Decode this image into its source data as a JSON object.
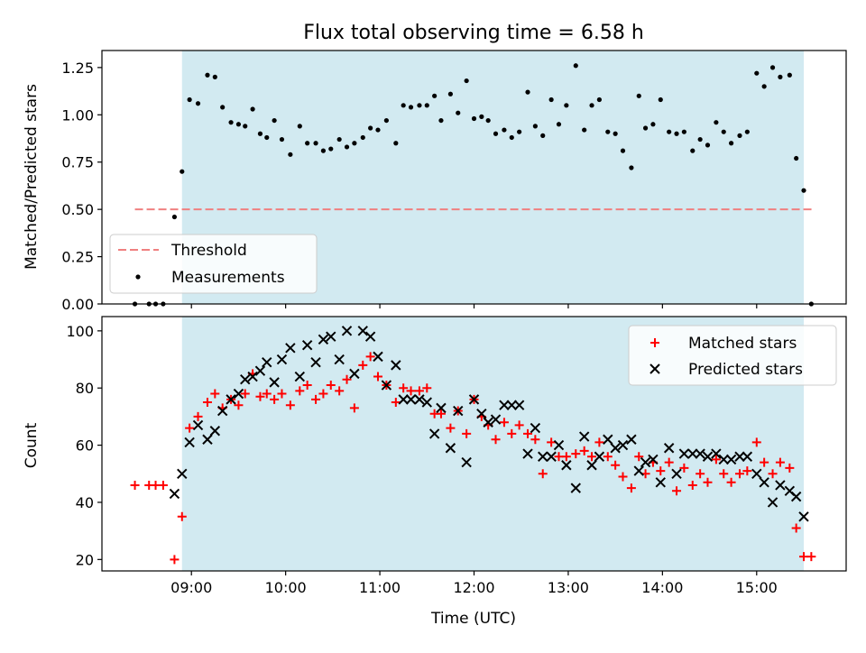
{
  "title": "Flux total observing time = 6.58 h",
  "colors": {
    "shade": "#add8e6",
    "threshold": "#f08080",
    "measurement": "#000000",
    "matched": "#ff0000",
    "predicted": "#000000"
  },
  "chart_data": [
    {
      "type": "scatter",
      "ylabel": "Matched/Predicted stars",
      "xlim": [
        8.05,
        15.95
      ],
      "ylim": [
        0,
        1.34
      ],
      "yticks": [
        0.0,
        0.25,
        0.5,
        0.75,
        1.0,
        1.25
      ],
      "ytick_labels": [
        "0.00",
        "0.25",
        "0.50",
        "0.75",
        "1.00",
        "1.25"
      ],
      "shaded_span": [
        8.9,
        15.5
      ],
      "legend_position": "lower-left",
      "threshold": {
        "name": "Threshold",
        "y": 0.5,
        "x_range": [
          8.4,
          15.6
        ],
        "style": "dashed"
      },
      "series": [
        {
          "name": "Measurements",
          "marker": "dot",
          "points": [
            [
              8.4,
              0.0
            ],
            [
              8.55,
              0.0
            ],
            [
              8.62,
              0.0
            ],
            [
              8.7,
              0.0
            ],
            [
              8.82,
              0.46
            ],
            [
              8.9,
              0.7
            ],
            [
              8.98,
              1.08
            ],
            [
              9.07,
              1.06
            ],
            [
              9.17,
              1.21
            ],
            [
              9.25,
              1.2
            ],
            [
              9.33,
              1.04
            ],
            [
              9.42,
              0.96
            ],
            [
              9.5,
              0.95
            ],
            [
              9.57,
              0.94
            ],
            [
              9.65,
              1.03
            ],
            [
              9.73,
              0.9
            ],
            [
              9.8,
              0.88
            ],
            [
              9.88,
              0.97
            ],
            [
              9.96,
              0.87
            ],
            [
              10.05,
              0.79
            ],
            [
              10.15,
              0.94
            ],
            [
              10.23,
              0.85
            ],
            [
              10.32,
              0.85
            ],
            [
              10.4,
              0.81
            ],
            [
              10.48,
              0.82
            ],
            [
              10.57,
              0.87
            ],
            [
              10.65,
              0.83
            ],
            [
              10.73,
              0.85
            ],
            [
              10.82,
              0.88
            ],
            [
              10.9,
              0.93
            ],
            [
              10.98,
              0.92
            ],
            [
              11.07,
              0.97
            ],
            [
              11.17,
              0.85
            ],
            [
              11.25,
              1.05
            ],
            [
              11.33,
              1.04
            ],
            [
              11.42,
              1.05
            ],
            [
              11.5,
              1.05
            ],
            [
              11.58,
              1.1
            ],
            [
              11.65,
              0.97
            ],
            [
              11.75,
              1.11
            ],
            [
              11.83,
              1.01
            ],
            [
              11.92,
              1.18
            ],
            [
              12.0,
              0.98
            ],
            [
              12.08,
              0.99
            ],
            [
              12.15,
              0.97
            ],
            [
              12.23,
              0.9
            ],
            [
              12.32,
              0.92
            ],
            [
              12.4,
              0.88
            ],
            [
              12.48,
              0.91
            ],
            [
              12.57,
              1.12
            ],
            [
              12.65,
              0.94
            ],
            [
              12.73,
              0.89
            ],
            [
              12.82,
              1.08
            ],
            [
              12.9,
              0.95
            ],
            [
              12.98,
              1.05
            ],
            [
              13.08,
              1.26
            ],
            [
              13.17,
              0.92
            ],
            [
              13.25,
              1.05
            ],
            [
              13.33,
              1.08
            ],
            [
              13.42,
              0.91
            ],
            [
              13.5,
              0.9
            ],
            [
              13.58,
              0.81
            ],
            [
              13.67,
              0.72
            ],
            [
              13.75,
              1.1
            ],
            [
              13.82,
              0.93
            ],
            [
              13.9,
              0.95
            ],
            [
              13.98,
              1.08
            ],
            [
              14.07,
              0.91
            ],
            [
              14.15,
              0.9
            ],
            [
              14.23,
              0.91
            ],
            [
              14.32,
              0.81
            ],
            [
              14.4,
              0.87
            ],
            [
              14.48,
              0.84
            ],
            [
              14.57,
              0.96
            ],
            [
              14.65,
              0.91
            ],
            [
              14.73,
              0.85
            ],
            [
              14.82,
              0.89
            ],
            [
              14.9,
              0.91
            ],
            [
              15.0,
              1.22
            ],
            [
              15.08,
              1.15
            ],
            [
              15.17,
              1.25
            ],
            [
              15.25,
              1.2
            ],
            [
              15.35,
              1.21
            ],
            [
              15.42,
              0.77
            ],
            [
              15.5,
              0.6
            ],
            [
              15.58,
              0.0
            ]
          ]
        }
      ]
    },
    {
      "type": "scatter",
      "xlabel": "Time (UTC)",
      "ylabel": "Count",
      "xlim": [
        8.05,
        15.95
      ],
      "ylim": [
        16,
        105
      ],
      "yticks": [
        20,
        40,
        60,
        80,
        100
      ],
      "ytick_labels": [
        "20",
        "40",
        "60",
        "80",
        "100"
      ],
      "xticks": [
        9,
        10,
        11,
        12,
        13,
        14,
        15
      ],
      "xtick_labels": [
        "09:00",
        "10:00",
        "11:00",
        "12:00",
        "13:00",
        "14:00",
        "15:00"
      ],
      "shaded_span": [
        8.9,
        15.5
      ],
      "legend_position": "upper-right",
      "series": [
        {
          "name": "Matched stars",
          "marker": "plus",
          "points": [
            [
              8.4,
              46
            ],
            [
              8.55,
              46
            ],
            [
              8.62,
              46
            ],
            [
              8.7,
              46
            ],
            [
              8.82,
              20
            ],
            [
              8.9,
              35
            ],
            [
              8.98,
              66
            ],
            [
              9.07,
              70
            ],
            [
              9.17,
              75
            ],
            [
              9.25,
              78
            ],
            [
              9.33,
              73
            ],
            [
              9.42,
              76
            ],
            [
              9.5,
              74
            ],
            [
              9.57,
              78
            ],
            [
              9.65,
              85
            ],
            [
              9.73,
              77
            ],
            [
              9.8,
              78
            ],
            [
              9.88,
              76
            ],
            [
              9.96,
              78
            ],
            [
              10.05,
              74
            ],
            [
              10.15,
              79
            ],
            [
              10.23,
              81
            ],
            [
              10.32,
              76
            ],
            [
              10.4,
              78
            ],
            [
              10.48,
              81
            ],
            [
              10.57,
              79
            ],
            [
              10.65,
              83
            ],
            [
              10.73,
              73
            ],
            [
              10.82,
              88
            ],
            [
              10.9,
              91
            ],
            [
              10.98,
              84
            ],
            [
              11.07,
              81
            ],
            [
              11.17,
              75
            ],
            [
              11.25,
              80
            ],
            [
              11.33,
              79
            ],
            [
              11.42,
              79
            ],
            [
              11.5,
              80
            ],
            [
              11.58,
              71
            ],
            [
              11.65,
              71
            ],
            [
              11.75,
              66
            ],
            [
              11.83,
              72
            ],
            [
              11.92,
              64
            ],
            [
              12.0,
              76
            ],
            [
              12.08,
              70
            ],
            [
              12.15,
              67
            ],
            [
              12.23,
              62
            ],
            [
              12.32,
              68
            ],
            [
              12.4,
              64
            ],
            [
              12.48,
              67
            ],
            [
              12.57,
              64
            ],
            [
              12.65,
              62
            ],
            [
              12.73,
              50
            ],
            [
              12.82,
              61
            ],
            [
              12.9,
              56
            ],
            [
              12.98,
              56
            ],
            [
              13.08,
              57
            ],
            [
              13.17,
              58
            ],
            [
              13.25,
              56
            ],
            [
              13.33,
              61
            ],
            [
              13.42,
              56
            ],
            [
              13.5,
              53
            ],
            [
              13.58,
              49
            ],
            [
              13.67,
              45
            ],
            [
              13.75,
              56
            ],
            [
              13.82,
              50
            ],
            [
              13.9,
              54
            ],
            [
              13.98,
              51
            ],
            [
              14.07,
              54
            ],
            [
              14.15,
              44
            ],
            [
              14.23,
              52
            ],
            [
              14.32,
              46
            ],
            [
              14.4,
              50
            ],
            [
              14.48,
              47
            ],
            [
              14.57,
              55
            ],
            [
              14.65,
              50
            ],
            [
              14.73,
              47
            ],
            [
              14.82,
              50
            ],
            [
              14.9,
              51
            ],
            [
              15.0,
              61
            ],
            [
              15.08,
              54
            ],
            [
              15.17,
              50
            ],
            [
              15.25,
              54
            ],
            [
              15.35,
              52
            ],
            [
              15.42,
              31
            ],
            [
              15.5,
              21
            ],
            [
              15.58,
              21
            ]
          ]
        },
        {
          "name": "Predicted stars",
          "marker": "x",
          "points": [
            [
              8.82,
              43
            ],
            [
              8.9,
              50
            ],
            [
              8.98,
              61
            ],
            [
              9.07,
              67
            ],
            [
              9.17,
              62
            ],
            [
              9.25,
              65
            ],
            [
              9.33,
              72
            ],
            [
              9.42,
              76
            ],
            [
              9.5,
              78
            ],
            [
              9.57,
              83
            ],
            [
              9.65,
              84
            ],
            [
              9.73,
              86
            ],
            [
              9.8,
              89
            ],
            [
              9.88,
              82
            ],
            [
              9.96,
              90
            ],
            [
              10.05,
              94
            ],
            [
              10.15,
              84
            ],
            [
              10.23,
              95
            ],
            [
              10.32,
              89
            ],
            [
              10.4,
              97
            ],
            [
              10.48,
              98
            ],
            [
              10.57,
              90
            ],
            [
              10.65,
              100
            ],
            [
              10.73,
              85
            ],
            [
              10.82,
              100
            ],
            [
              10.9,
              98
            ],
            [
              10.98,
              91
            ],
            [
              11.07,
              81
            ],
            [
              11.17,
              88
            ],
            [
              11.25,
              76
            ],
            [
              11.33,
              76
            ],
            [
              11.42,
              76
            ],
            [
              11.5,
              75
            ],
            [
              11.58,
              64
            ],
            [
              11.65,
              73
            ],
            [
              11.75,
              59
            ],
            [
              11.83,
              72
            ],
            [
              11.92,
              54
            ],
            [
              12.0,
              76
            ],
            [
              12.08,
              71
            ],
            [
              12.15,
              68
            ],
            [
              12.23,
              69
            ],
            [
              12.32,
              74
            ],
            [
              12.4,
              74
            ],
            [
              12.48,
              74
            ],
            [
              12.57,
              57
            ],
            [
              12.65,
              66
            ],
            [
              12.73,
              56
            ],
            [
              12.82,
              56
            ],
            [
              12.9,
              60
            ],
            [
              12.98,
              53
            ],
            [
              13.08,
              45
            ],
            [
              13.17,
              63
            ],
            [
              13.25,
              53
            ],
            [
              13.33,
              56
            ],
            [
              13.42,
              62
            ],
            [
              13.5,
              59
            ],
            [
              13.58,
              60
            ],
            [
              13.67,
              62
            ],
            [
              13.75,
              51
            ],
            [
              13.82,
              54
            ],
            [
              13.9,
              55
            ],
            [
              13.98,
              47
            ],
            [
              14.07,
              59
            ],
            [
              14.15,
              50
            ],
            [
              14.23,
              57
            ],
            [
              14.32,
              57
            ],
            [
              14.4,
              57
            ],
            [
              14.48,
              56
            ],
            [
              14.57,
              57
            ],
            [
              14.65,
              55
            ],
            [
              14.73,
              55
            ],
            [
              14.82,
              56
            ],
            [
              14.9,
              56
            ],
            [
              15.0,
              50
            ],
            [
              15.08,
              47
            ],
            [
              15.17,
              40
            ],
            [
              15.25,
              46
            ],
            [
              15.35,
              44
            ],
            [
              15.42,
              42
            ],
            [
              15.5,
              35
            ]
          ]
        }
      ]
    }
  ]
}
